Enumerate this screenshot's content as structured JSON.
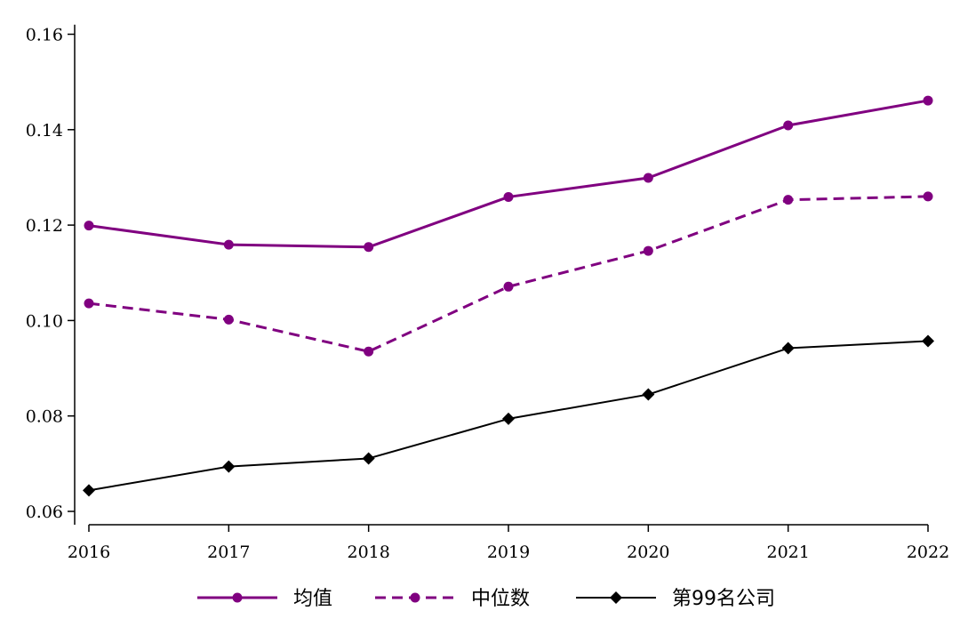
{
  "chart_data": {
    "type": "line",
    "title": "",
    "xlabel": "",
    "ylabel": "",
    "x": [
      2016,
      2017,
      2018,
      2019,
      2020,
      2021,
      2022
    ],
    "x_tick_labels": [
      "2016",
      "2017",
      "2018",
      "2019",
      "2020",
      "2021",
      "2022"
    ],
    "ylim": [
      0.058,
      0.162
    ],
    "y_ticks": [
      0.06,
      0.08,
      0.1,
      0.12,
      0.14,
      0.16
    ],
    "y_tick_labels": [
      "0.06",
      "0.08",
      "0.10",
      "0.12",
      "0.14",
      "0.16"
    ],
    "grid": false,
    "legend_position": "bottom",
    "series": [
      {
        "name": "均值",
        "values": [
          0.1199,
          0.1159,
          0.1154,
          0.1259,
          0.1299,
          0.1409,
          0.1461
        ],
        "color": "#800080",
        "line_style": "solid",
        "marker": "circle"
      },
      {
        "name": "中位数",
        "values": [
          0.1036,
          0.1002,
          0.0935,
          0.1071,
          0.1146,
          0.1253,
          0.126
        ],
        "color": "#800080",
        "line_style": "dashed",
        "marker": "circle"
      },
      {
        "name": "第99名公司",
        "values": [
          0.0644,
          0.0694,
          0.0711,
          0.0794,
          0.0845,
          0.0942,
          0.0957
        ],
        "color": "#000000",
        "line_style": "solid",
        "marker": "diamond"
      }
    ]
  }
}
